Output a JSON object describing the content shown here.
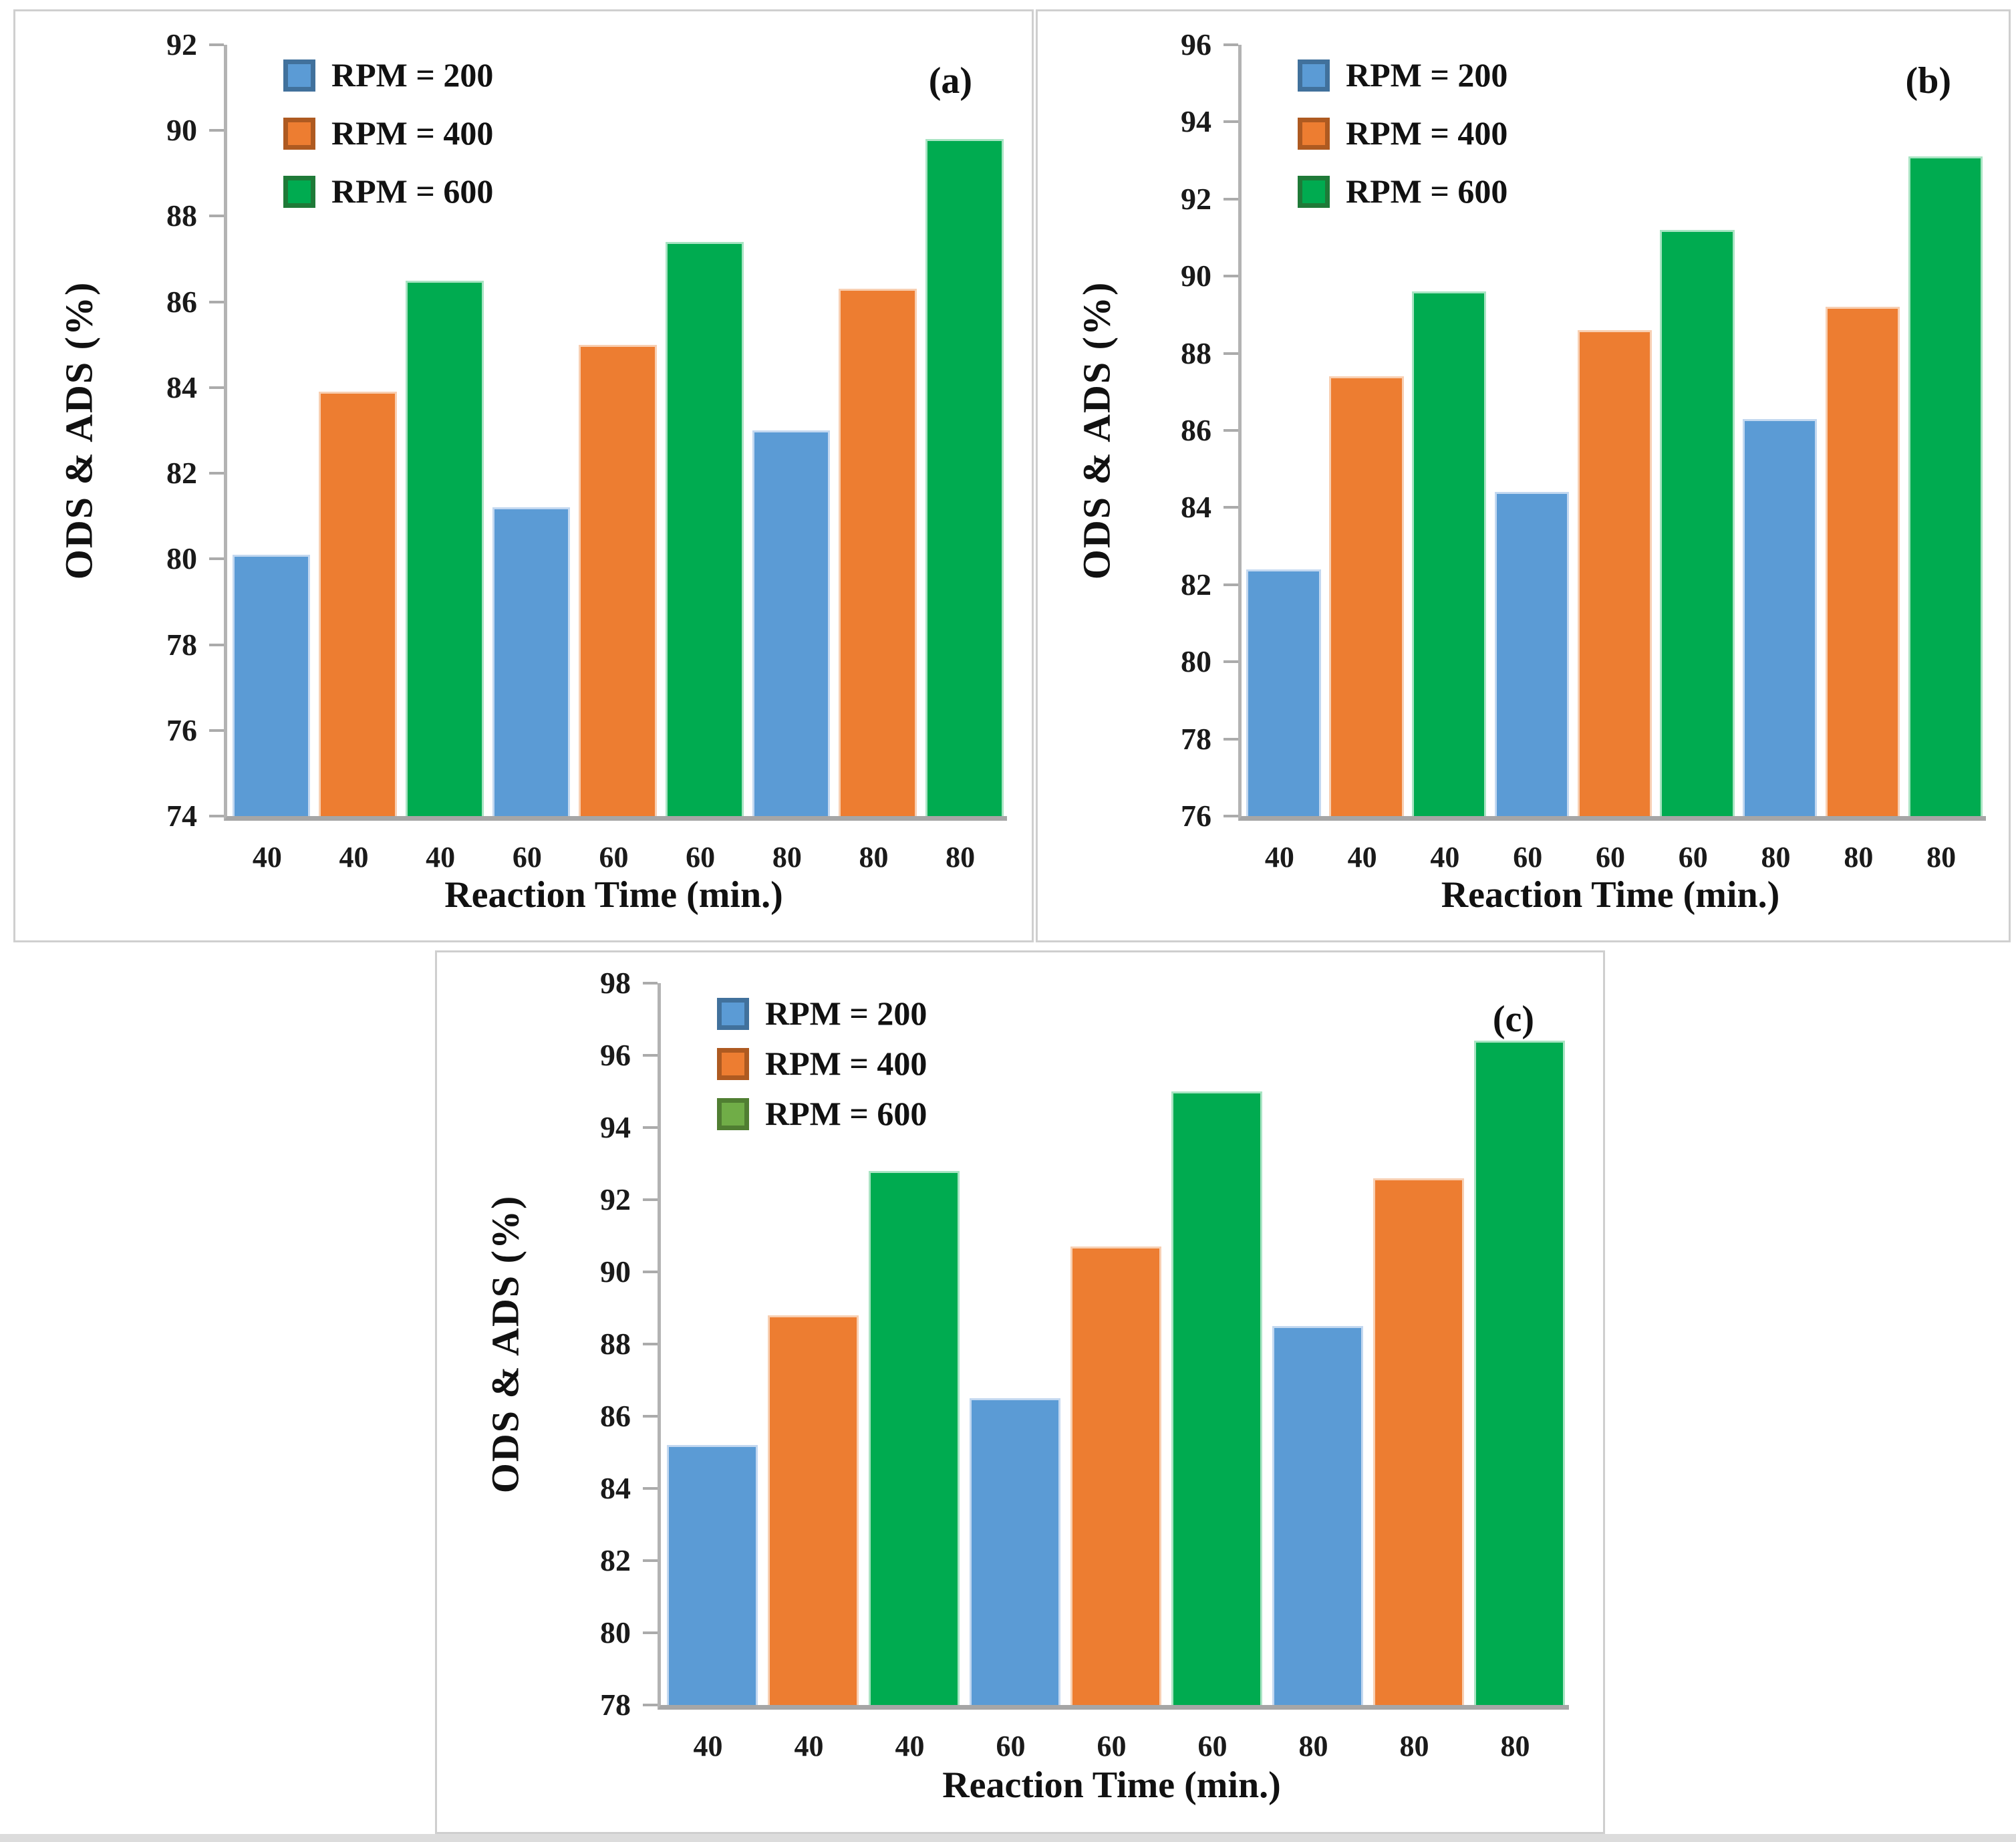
{
  "figure": {
    "background": "#ffffff",
    "panel_border_color": "#cfcfcf",
    "axis_line_color": "#a6a6a6",
    "tick_color": "#ababab"
  },
  "chart_data": [
    {
      "type": "bar",
      "panel_label": "(a)",
      "title": "",
      "xlabel": "Reaction Time (min.)",
      "ylabel": "ODS & ADS (%)",
      "ylim": [
        74,
        92
      ],
      "ytick_step": 2,
      "grid": false,
      "legend_position": "top-left",
      "categories": [
        "40",
        "60",
        "80"
      ],
      "x_tick_labels": [
        "40",
        "40",
        "40",
        "60",
        "60",
        "60",
        "80",
        "80",
        "80"
      ],
      "series": [
        {
          "name": "RPM = 200",
          "color": "#5b9bd5",
          "edge": "#c3d8f0",
          "legend_fill": "#5b9bd5",
          "legend_border": "#41719c",
          "values": [
            80.1,
            81.2,
            83.0
          ]
        },
        {
          "name": "RPM = 400",
          "color": "#ed7d31",
          "edge": "#f8cfb2",
          "legend_fill": "#ed7d31",
          "legend_border": "#ae5a21",
          "values": [
            83.9,
            85.0,
            86.3
          ]
        },
        {
          "name": "RPM = 600",
          "color": "#00ab50",
          "edge": "#a9e4c3",
          "legend_fill": "#00ab50",
          "legend_border": "#1f7a38",
          "values": [
            86.5,
            87.4,
            89.8
          ]
        }
      ]
    },
    {
      "type": "bar",
      "panel_label": "(b)",
      "title": "",
      "xlabel": "Reaction Time (min.)",
      "ylabel": "ODS & ADS (%)",
      "ylim": [
        76,
        96
      ],
      "ytick_step": 2,
      "grid": false,
      "legend_position": "top-left",
      "categories": [
        "40",
        "60",
        "80"
      ],
      "x_tick_labels": [
        "40",
        "40",
        "40",
        "60",
        "60",
        "60",
        "80",
        "80",
        "80"
      ],
      "series": [
        {
          "name": "RPM = 200",
          "color": "#5b9bd5",
          "edge": "#c3d8f0",
          "legend_fill": "#5b9bd5",
          "legend_border": "#41719c",
          "values": [
            82.4,
            84.4,
            86.3
          ]
        },
        {
          "name": "RPM = 400",
          "color": "#ed7d31",
          "edge": "#f8cfb2",
          "legend_fill": "#ed7d31",
          "legend_border": "#ae5a21",
          "values": [
            87.4,
            88.6,
            89.2
          ]
        },
        {
          "name": "RPM = 600",
          "color": "#00ab50",
          "edge": "#a9e4c3",
          "legend_fill": "#00ab50",
          "legend_border": "#1f7a38",
          "values": [
            89.6,
            91.2,
            93.1
          ]
        }
      ]
    },
    {
      "type": "bar",
      "panel_label": "(c)",
      "title": "",
      "xlabel": "Reaction Time (min.)",
      "ylabel": "ODS & ADS (%)",
      "ylim": [
        78,
        98
      ],
      "ytick_step": 2,
      "grid": false,
      "legend_position": "top-left",
      "categories": [
        "40",
        "60",
        "80"
      ],
      "x_tick_labels": [
        "40",
        "40",
        "40",
        "60",
        "60",
        "60",
        "80",
        "80",
        "80"
      ],
      "series": [
        {
          "name": "RPM = 200",
          "color": "#5b9bd5",
          "edge": "#c3d8f0",
          "legend_fill": "#5b9bd5",
          "legend_border": "#41719c",
          "values": [
            85.2,
            86.5,
            88.5
          ]
        },
        {
          "name": "RPM = 400",
          "color": "#ed7d31",
          "edge": "#f8cfb2",
          "legend_fill": "#ed7d31",
          "legend_border": "#ae5a21",
          "values": [
            88.8,
            90.7,
            92.6
          ]
        },
        {
          "name": "RPM = 600",
          "color": "#00ab50",
          "edge": "#a9e4c3",
          "legend_fill": "#70ad47",
          "legend_border": "#507e32",
          "values": [
            92.8,
            95.0,
            96.4
          ]
        }
      ]
    }
  ]
}
